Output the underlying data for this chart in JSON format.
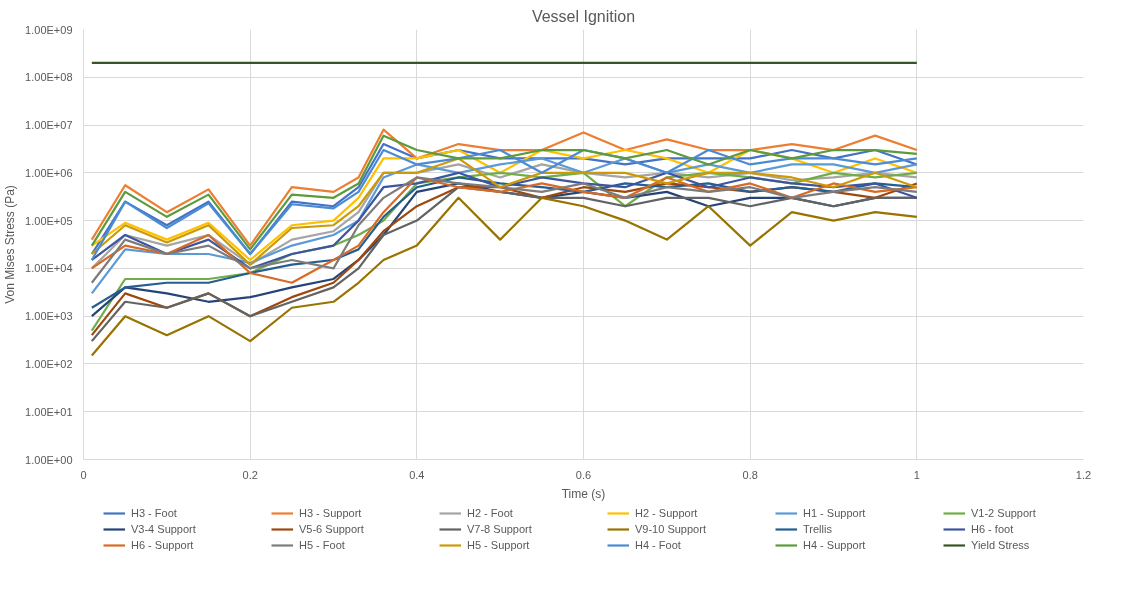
{
  "chart_data": {
    "type": "line",
    "title": "Vessel Ignition",
    "xlabel": "Time (s)",
    "ylabel": "Von Mises Stress (Pa)",
    "log": "y",
    "grid": true,
    "legend": "bottom",
    "line_style": "solid",
    "xlim": [
      0,
      1.2
    ],
    "xticks": [
      0,
      0.2,
      0.4,
      0.6,
      0.8,
      1,
      1.2
    ],
    "ylim": [
      1,
      1000000000
    ],
    "yticks": [
      {
        "value": 1,
        "label": "1.00E+00"
      },
      {
        "value": 10,
        "label": "1.00E+01"
      },
      {
        "value": 100,
        "label": "1.00E+02"
      },
      {
        "value": 1000,
        "label": "1.00E+03"
      },
      {
        "value": 10000,
        "label": "1.00E+04"
      },
      {
        "value": 100000,
        "label": "1.00E+05"
      },
      {
        "value": 1000000,
        "label": "1.00E+06"
      },
      {
        "value": 10000000,
        "label": "1.00E+07"
      },
      {
        "value": 100000000,
        "label": "1.00E+08"
      },
      {
        "value": 1000000000,
        "label": "1.00E+09"
      }
    ],
    "x": [
      0.01,
      0.05,
      0.1,
      0.15,
      0.2,
      0.25,
      0.3,
      0.33,
      0.36,
      0.4,
      0.45,
      0.5,
      0.55,
      0.6,
      0.65,
      0.7,
      0.75,
      0.8,
      0.85,
      0.9,
      0.95,
      1.0
    ],
    "series": [
      {
        "name": "H3 - Foot",
        "color": "#4472c4",
        "values": [
          20000.0,
          250000.0,
          80000.0,
          250000.0,
          20000.0,
          250000.0,
          200000.0,
          500000.0,
          4000000.0,
          2000000.0,
          3000000.0,
          2000000.0,
          2000000.0,
          2000000.0,
          1500000.0,
          2000000.0,
          2000000.0,
          2000000.0,
          3000000.0,
          2000000.0,
          3000000.0,
          1500000.0
        ]
      },
      {
        "name": "H3 - Support",
        "color": "#ed7d31",
        "values": [
          40000.0,
          550000.0,
          150000.0,
          450000.0,
          30000.0,
          500000.0,
          400000.0,
          800000.0,
          8000000.0,
          2000000.0,
          4000000.0,
          3000000.0,
          3000000.0,
          7000000.0,
          3000000.0,
          5000000.0,
          3000000.0,
          3000000.0,
          4000000.0,
          3000000.0,
          6000000.0,
          3000000.0
        ]
      },
      {
        "name": "H2 - Foot",
        "color": "#a5a5a5",
        "values": [
          10000.0,
          50000.0,
          30000.0,
          50000.0,
          12000.0,
          40000.0,
          60000.0,
          150000.0,
          1000000.0,
          1000000.0,
          1500000.0,
          800000.0,
          1500000.0,
          1000000.0,
          800000.0,
          1000000.0,
          800000.0,
          1000000.0,
          700000.0,
          800000.0,
          1000000.0,
          800000.0
        ]
      },
      {
        "name": "H2 - Support",
        "color": "#ffc000",
        "values": [
          30000.0,
          90000.0,
          40000.0,
          90000.0,
          15000.0,
          80000.0,
          100000.0,
          300000.0,
          2000000.0,
          2000000.0,
          3000000.0,
          1000000.0,
          3000000.0,
          2000000.0,
          3000000.0,
          2000000.0,
          1000000.0,
          3000000.0,
          2000000.0,
          1000000.0,
          2000000.0,
          1000000.0
        ]
      },
      {
        "name": "H1 - Support",
        "color": "#5b9bd5",
        "values": [
          3000.0,
          25000.0,
          20000.0,
          20000.0,
          13000.0,
          30000.0,
          50000.0,
          100000.0,
          800000.0,
          1500000.0,
          1000000.0,
          1500000.0,
          2000000.0,
          1000000.0,
          2000000.0,
          1000000.0,
          1500000.0,
          1000000.0,
          1500000.0,
          1500000.0,
          1000000.0,
          1500000.0
        ]
      },
      {
        "name": "V1-2 Support",
        "color": "#70ad47",
        "values": [
          500.0,
          6000.0,
          6000.0,
          6000.0,
          8000.0,
          20000.0,
          30000.0,
          50000.0,
          100000.0,
          600000.0,
          800000.0,
          1000000.0,
          800000.0,
          1000000.0,
          200000.0,
          800000.0,
          1000000.0,
          800000.0,
          600000.0,
          1000000.0,
          800000.0,
          1000000.0
        ]
      },
      {
        "name": "V3-4 Support",
        "color": "#264478",
        "values": [
          1000.0,
          4000.0,
          3000.0,
          2000.0,
          2500.0,
          4000.0,
          6000.0,
          15000.0,
          50000.0,
          400000.0,
          600000.0,
          400000.0,
          300000.0,
          400000.0,
          300000.0,
          400000.0,
          200000.0,
          300000.0,
          300000.0,
          200000.0,
          300000.0,
          300000.0
        ]
      },
      {
        "name": "V5-6 Support",
        "color": "#9e480e",
        "values": [
          400.0,
          3000.0,
          1500.0,
          3000.0,
          1000.0,
          2500.0,
          5000.0,
          15000.0,
          60000.0,
          200000.0,
          500000.0,
          500000.0,
          300000.0,
          500000.0,
          400000.0,
          600000.0,
          500000.0,
          400000.0,
          500000.0,
          400000.0,
          300000.0,
          600000.0
        ]
      },
      {
        "name": "V7-8 Support",
        "color": "#636363",
        "values": [
          300.0,
          2000.0,
          1500.0,
          3000.0,
          1000.0,
          2000.0,
          4000.0,
          10000.0,
          50000.0,
          100000.0,
          500000.0,
          400000.0,
          300000.0,
          300000.0,
          200000.0,
          300000.0,
          300000.0,
          200000.0,
          300000.0,
          200000.0,
          300000.0,
          300000.0
        ]
      },
      {
        "name": "V9-10 Support",
        "color": "#997300",
        "values": [
          150.0,
          1000.0,
          400.0,
          1000.0,
          300.0,
          1500.0,
          2000.0,
          5000.0,
          15000.0,
          30000.0,
          300000.0,
          40000.0,
          300000.0,
          200000.0,
          100000.0,
          40000.0,
          200000.0,
          30000.0,
          150000.0,
          100000.0,
          150000.0,
          120000.0
        ]
      },
      {
        "name": "Trellis",
        "color": "#255e91",
        "values": [
          1500.0,
          4000.0,
          5000.0,
          5000.0,
          8000.0,
          12000.0,
          15000.0,
          25000.0,
          120000.0,
          500000.0,
          800000.0,
          600000.0,
          500000.0,
          400000.0,
          600000.0,
          500000.0,
          600000.0,
          400000.0,
          500000.0,
          400000.0,
          600000.0,
          500000.0
        ]
      },
      {
        "name": "H6 - foot",
        "color": "#3d55a0",
        "values": [
          15000.0,
          50000.0,
          20000.0,
          40000.0,
          10000.0,
          20000.0,
          30000.0,
          100000.0,
          500000.0,
          600000.0,
          1000000.0,
          500000.0,
          800000.0,
          600000.0,
          500000.0,
          1000000.0,
          500000.0,
          800000.0,
          600000.0,
          500000.0,
          600000.0,
          300000.0
        ]
      },
      {
        "name": "H6 - Support",
        "color": "#d86a25",
        "values": [
          10000.0,
          30000.0,
          20000.0,
          50000.0,
          8000.0,
          5000.0,
          15000.0,
          30000.0,
          150000.0,
          800000.0,
          500000.0,
          400000.0,
          600000.0,
          400000.0,
          300000.0,
          800000.0,
          400000.0,
          600000.0,
          300000.0,
          600000.0,
          400000.0,
          500000.0
        ]
      },
      {
        "name": "H5 - Foot",
        "color": "#7c7c7c",
        "values": [
          5000.0,
          40000.0,
          20000.0,
          30000.0,
          10000.0,
          15000.0,
          10000.0,
          80000.0,
          300000.0,
          800000.0,
          600000.0,
          500000.0,
          400000.0,
          600000.0,
          300000.0,
          500000.0,
          400000.0,
          500000.0,
          300000.0,
          400000.0,
          500000.0,
          400000.0
        ]
      },
      {
        "name": "H5 - Support",
        "color": "#cc9a06",
        "values": [
          20000.0,
          80000.0,
          35000.0,
          80000.0,
          12000.0,
          70000.0,
          80000.0,
          200000.0,
          1000000.0,
          1000000.0,
          2000000.0,
          500000.0,
          1000000.0,
          1000000.0,
          1000000.0,
          600000.0,
          1000000.0,
          1000000.0,
          800000.0,
          500000.0,
          1000000.0,
          500000.0
        ]
      },
      {
        "name": "H4 - Foot",
        "color": "#4a8bd4",
        "values": [
          15000.0,
          250000.0,
          70000.0,
          230000.0,
          20000.0,
          220000.0,
          180000.0,
          400000.0,
          3000000.0,
          1500000.0,
          2000000.0,
          3000000.0,
          1000000.0,
          3000000.0,
          2000000.0,
          1000000.0,
          3000000.0,
          1500000.0,
          2000000.0,
          2000000.0,
          1500000.0,
          2000000.0
        ]
      },
      {
        "name": "H4 - Support",
        "color": "#5b9b3c",
        "values": [
          30000.0,
          400000.0,
          120000.0,
          350000.0,
          25000.0,
          350000.0,
          300000.0,
          600000.0,
          6000000.0,
          3000000.0,
          2000000.0,
          2000000.0,
          3000000.0,
          3000000.0,
          2000000.0,
          3000000.0,
          1500000.0,
          3000000.0,
          2000000.0,
          3000000.0,
          3000000.0,
          2500000.0
        ]
      },
      {
        "name": "Yield Stress",
        "color": "#375623",
        "x": [
          0.01,
          1.0
        ],
        "values": [
          200000000.0,
          200000000.0
        ]
      }
    ]
  }
}
